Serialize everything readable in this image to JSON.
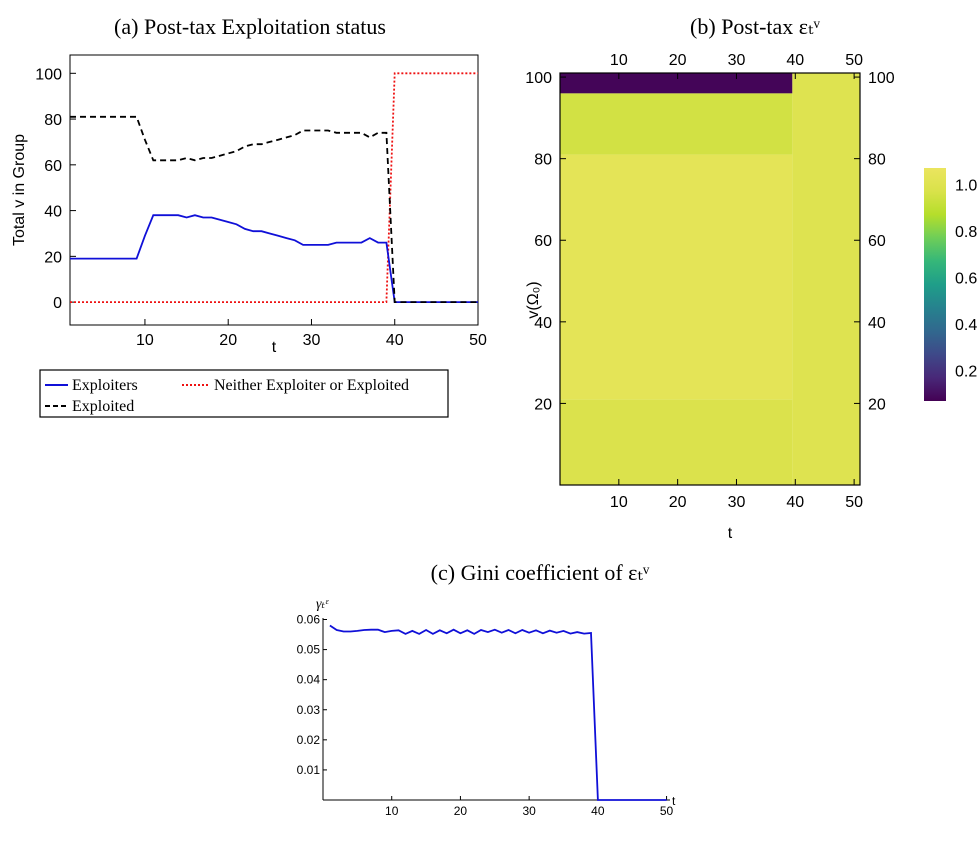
{
  "chart_data": [
    {
      "panel": "a",
      "type": "line",
      "title": "(a) Post-tax Exploitation status",
      "xlabel": "t",
      "ylabel": "Total v in Group",
      "xlim": [
        1,
        50
      ],
      "ylim": [
        -10,
        108
      ],
      "xticks": [
        10,
        20,
        30,
        40,
        50
      ],
      "yticks": [
        0,
        20,
        40,
        60,
        80,
        100
      ],
      "legend_position": "below",
      "series": [
        {
          "name": "Exploiters",
          "color": "#1010d8",
          "dash": "solid",
          "x": [
            1,
            2,
            3,
            4,
            5,
            6,
            7,
            8,
            9,
            10,
            11,
            12,
            13,
            14,
            15,
            16,
            17,
            18,
            19,
            20,
            21,
            22,
            23,
            24,
            25,
            26,
            27,
            28,
            29,
            30,
            31,
            32,
            33,
            34,
            35,
            36,
            37,
            38,
            39,
            40,
            41,
            42,
            43,
            44,
            45,
            46,
            47,
            48,
            49,
            50
          ],
          "y": [
            19,
            19,
            19,
            19,
            19,
            19,
            19,
            19,
            19,
            29,
            38,
            38,
            38,
            38,
            37,
            38,
            37,
            37,
            36,
            35,
            34,
            32,
            31,
            31,
            30,
            29,
            28,
            27,
            25,
            25,
            25,
            25,
            26,
            26,
            26,
            26,
            28,
            26,
            26,
            0,
            0,
            0,
            0,
            0,
            0,
            0,
            0,
            0,
            0,
            0
          ]
        },
        {
          "name": "Exploited",
          "color": "#000000",
          "dash": "dashed",
          "x": [
            1,
            2,
            3,
            4,
            5,
            6,
            7,
            8,
            9,
            10,
            11,
            12,
            13,
            14,
            15,
            16,
            17,
            18,
            19,
            20,
            21,
            22,
            23,
            24,
            25,
            26,
            27,
            28,
            29,
            30,
            31,
            32,
            33,
            34,
            35,
            36,
            37,
            38,
            39,
            40,
            41,
            42,
            43,
            44,
            45,
            46,
            47,
            48,
            49,
            50
          ],
          "y": [
            81,
            81,
            81,
            81,
            81,
            81,
            81,
            81,
            81,
            71,
            62,
            62,
            62,
            62,
            63,
            62,
            63,
            63,
            64,
            65,
            66,
            68,
            69,
            69,
            70,
            71,
            72,
            73,
            75,
            75,
            75,
            75,
            74,
            74,
            74,
            74,
            72,
            74,
            74,
            0,
            0,
            0,
            0,
            0,
            0,
            0,
            0,
            0,
            0,
            0
          ]
        },
        {
          "name": "Neither Exploiter or Exploited",
          "color": "#ee1111",
          "dash": "dotted",
          "x": [
            1,
            2,
            3,
            4,
            5,
            6,
            7,
            8,
            9,
            10,
            11,
            12,
            13,
            14,
            15,
            16,
            17,
            18,
            19,
            20,
            21,
            22,
            23,
            24,
            25,
            26,
            27,
            28,
            29,
            30,
            31,
            32,
            33,
            34,
            35,
            36,
            37,
            38,
            39,
            40,
            41,
            42,
            43,
            44,
            45,
            46,
            47,
            48,
            49,
            50
          ],
          "y": [
            0,
            0,
            0,
            0,
            0,
            0,
            0,
            0,
            0,
            0,
            0,
            0,
            0,
            0,
            0,
            0,
            0,
            0,
            0,
            0,
            0,
            0,
            0,
            0,
            0,
            0,
            0,
            0,
            0,
            0,
            0,
            0,
            0,
            0,
            0,
            0,
            0,
            0,
            0,
            100,
            100,
            100,
            100,
            100,
            100,
            100,
            100,
            100,
            100,
            100
          ]
        }
      ]
    },
    {
      "panel": "b",
      "type": "heatmap",
      "title": "(b) Post-tax εₜᵛ",
      "xlabel": "t",
      "ylabel": "v(Ω₀)",
      "xlim": [
        0,
        51
      ],
      "ylim": [
        0,
        101
      ],
      "xticks": [
        10,
        20,
        30,
        40,
        50
      ],
      "yticks": [
        20,
        40,
        60,
        80,
        100
      ],
      "colorscale": "viridis",
      "colorbar_ticks": [
        "0.2",
        "0.4",
        "0.6",
        "0.8",
        "1.0"
      ],
      "colorbar_range": [
        0.07,
        1.07
      ],
      "blocks": [
        {
          "t": [
            0,
            39.5
          ],
          "v": [
            96,
            101
          ],
          "value": 0.08
        },
        {
          "t": [
            0,
            39.5
          ],
          "v": [
            81,
            96
          ],
          "value": 0.95
        },
        {
          "t": [
            0,
            39.5
          ],
          "v": [
            21,
            81
          ],
          "value": 1.03
        },
        {
          "t": [
            0,
            39.5
          ],
          "v": [
            0,
            21
          ],
          "value": 0.98
        },
        {
          "t": [
            39.5,
            51
          ],
          "v": [
            0,
            101
          ],
          "value": 1.0
        }
      ]
    },
    {
      "panel": "c",
      "type": "line",
      "title": "(c) Gini coefficient of εₜᵛ",
      "xlabel": "t",
      "ylabel": "γₜᵋ",
      "xlim": [
        0,
        50.5
      ],
      "ylim": [
        0,
        0.0605
      ],
      "xticks": [
        10,
        20,
        30,
        40,
        50
      ],
      "yticks": [
        0.01,
        0.02,
        0.03,
        0.04,
        0.05,
        0.06
      ],
      "ytick_labels": [
        "0.01",
        "0.02",
        "0.03",
        "0.04",
        "0.05",
        "0.06"
      ],
      "series": [
        {
          "color": "#1010d8",
          "x": [
            1,
            2,
            3,
            4,
            5,
            6,
            7,
            8,
            9,
            10,
            11,
            12,
            13,
            14,
            15,
            16,
            17,
            18,
            19,
            20,
            21,
            22,
            23,
            24,
            25,
            26,
            27,
            28,
            29,
            30,
            31,
            32,
            33,
            34,
            35,
            36,
            37,
            38,
            39,
            40,
            41,
            42,
            43,
            44,
            45,
            46,
            47,
            48,
            49,
            50
          ],
          "y": [
            0.058,
            0.0565,
            0.056,
            0.056,
            0.0562,
            0.0565,
            0.0566,
            0.0566,
            0.0558,
            0.0562,
            0.0564,
            0.0552,
            0.0562,
            0.0552,
            0.0565,
            0.0552,
            0.0564,
            0.0554,
            0.0566,
            0.0554,
            0.0564,
            0.0552,
            0.0565,
            0.0558,
            0.0566,
            0.0556,
            0.0565,
            0.0554,
            0.0565,
            0.0556,
            0.0564,
            0.0554,
            0.0563,
            0.0556,
            0.0562,
            0.0553,
            0.0558,
            0.0553,
            0.0555,
            0,
            0,
            0,
            0,
            0,
            0,
            0,
            0,
            0,
            0,
            0
          ]
        }
      ]
    }
  ]
}
